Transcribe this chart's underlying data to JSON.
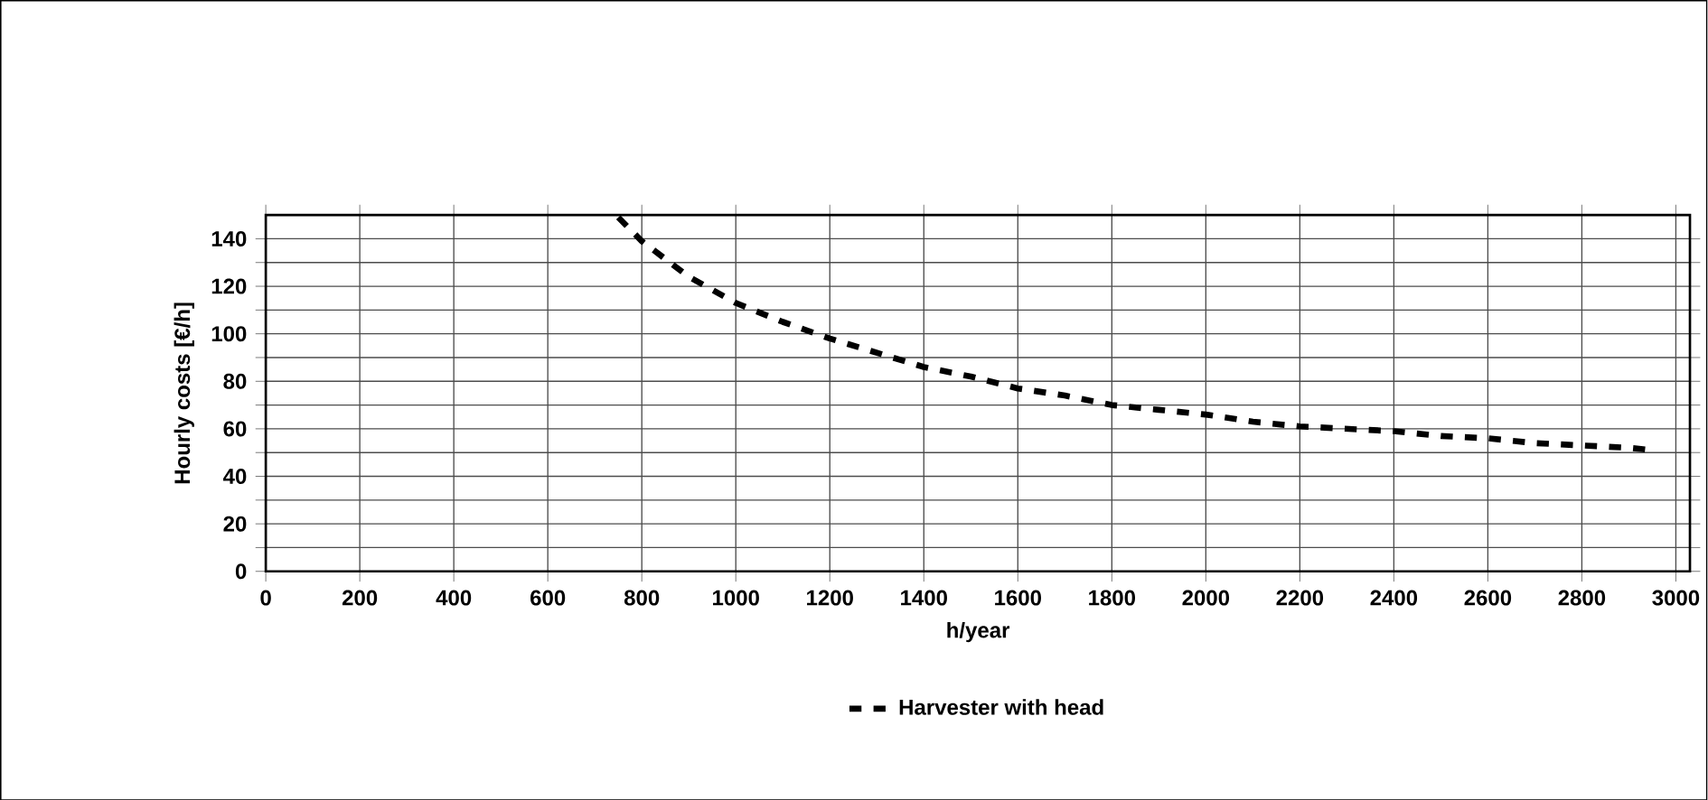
{
  "chart_data": {
    "type": "line",
    "xlabel": "h/year",
    "ylabel": "Hourly costs [€/h]",
    "x": [
      750,
      800,
      900,
      1000,
      1100,
      1200,
      1300,
      1400,
      1500,
      1600,
      1700,
      1800,
      1900,
      2000,
      2100,
      2200,
      2300,
      2400,
      2500,
      2600,
      2700,
      2800,
      2900,
      2950
    ],
    "series": [
      {
        "name": "Harvester with head",
        "color": "#000000",
        "values": [
          149,
          139,
          124,
          113,
          105,
          98,
          92,
          86,
          82,
          77,
          74,
          70,
          68,
          66,
          63,
          61,
          60,
          59,
          57,
          56,
          54,
          53,
          52,
          51
        ]
      }
    ],
    "xlim": [
      0,
      3030
    ],
    "ylim": [
      0,
      150
    ],
    "xticks": [
      0,
      200,
      400,
      600,
      800,
      1000,
      1200,
      1400,
      1600,
      1800,
      2000,
      2200,
      2400,
      2600,
      2800,
      3000
    ],
    "yticks": [
      0,
      {
        "value": 10,
        "label": null
      },
      20,
      {
        "value": 30,
        "label": null
      },
      40,
      {
        "value": 50,
        "label": null
      },
      60,
      {
        "value": 70,
        "label": null
      },
      80,
      {
        "value": 90,
        "label": null
      },
      100,
      {
        "value": 110,
        "label": null
      },
      120,
      {
        "value": 130,
        "label": null
      },
      140
    ],
    "grid": true,
    "legend": "bottom",
    "line_style": "dashed",
    "marker": "none"
  }
}
